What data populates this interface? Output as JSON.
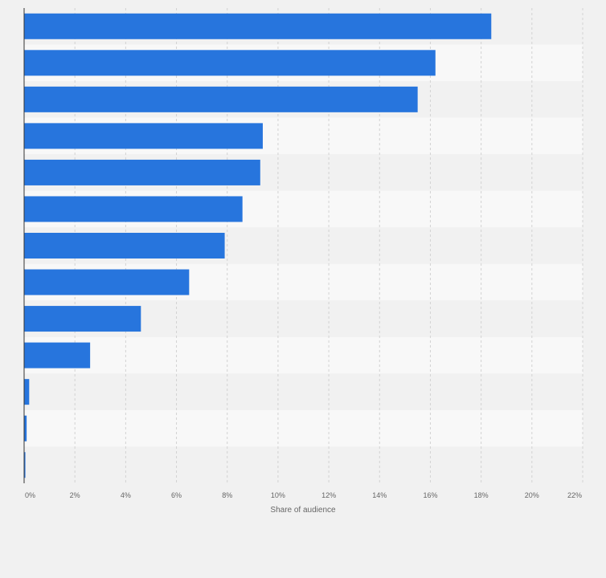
{
  "chart_data": {
    "type": "bar",
    "orientation": "horizontal",
    "title": "",
    "xlabel": "Share of audience",
    "ylabel": "",
    "xlim": [
      0,
      22
    ],
    "x_ticks": [
      0,
      2,
      4,
      6,
      8,
      10,
      12,
      14,
      16,
      18,
      20,
      22
    ],
    "x_tick_labels": [
      "0%",
      "2%",
      "4%",
      "6%",
      "8%",
      "10%",
      "12%",
      "14%",
      "16%",
      "18%",
      "20%",
      "22%"
    ],
    "categories": [
      "",
      "",
      "",
      "",
      "",
      "",
      "",
      "",
      "",
      "",
      "",
      "",
      ""
    ],
    "values": [
      18.4,
      16.2,
      15.5,
      9.4,
      9.3,
      8.6,
      7.9,
      6.5,
      4.6,
      2.6,
      0.2,
      0.1,
      0.05
    ],
    "grid": true,
    "colors": {
      "bar": "#2775dd",
      "band_dark": "#f1f1f1",
      "band_light": "#f8f8f8",
      "grid": "#d2d2d2",
      "axis": "#333333",
      "text": "#666666"
    }
  }
}
